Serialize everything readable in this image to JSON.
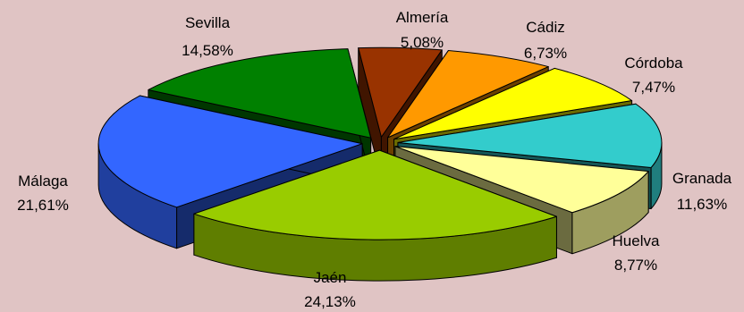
{
  "chart_data": {
    "type": "pie",
    "style": "3d-exploded",
    "legend": "none",
    "slices": [
      {
        "label": "Almería",
        "value_text": "5,08%",
        "value": 5.08,
        "color": "#993300"
      },
      {
        "label": "Cádiz",
        "value_text": "6,73%",
        "value": 6.73,
        "color": "#ff9900"
      },
      {
        "label": "Córdoba",
        "value_text": "7,47%",
        "value": 7.47,
        "color": "#ffff00"
      },
      {
        "label": "Granada",
        "value_text": "11,63%",
        "value": 11.63,
        "color": "#33cccc"
      },
      {
        "label": "Huelva",
        "value_text": "8,77%",
        "value": 8.77,
        "color": "#ffff99"
      },
      {
        "label": "Jaén",
        "value_text": "24,13%",
        "value": 24.13,
        "color": "#99cc00"
      },
      {
        "label": "Málaga",
        "value_text": "21,61%",
        "value": 21.61,
        "color": "#3366ff"
      },
      {
        "label": "Sevilla",
        "value_text": "14,58%",
        "value": 14.58,
        "color": "#008000"
      }
    ]
  }
}
